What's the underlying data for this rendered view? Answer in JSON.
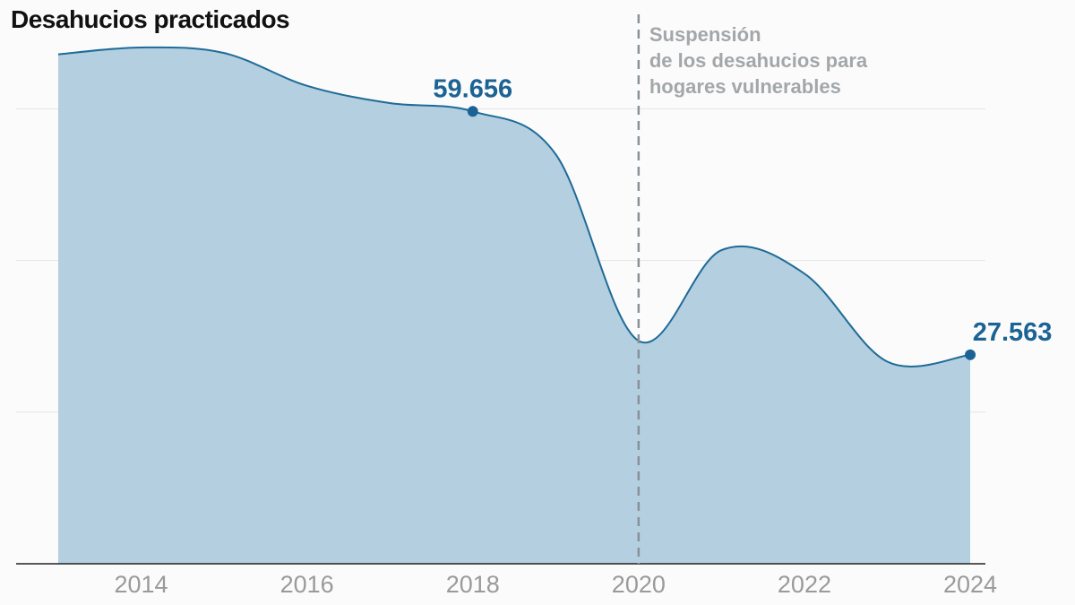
{
  "chart_data": {
    "type": "area",
    "title": "Desahucios practicados",
    "x": [
      2013,
      2014,
      2015,
      2016,
      2017,
      2018,
      2019,
      2020,
      2021,
      2022,
      2023,
      2024
    ],
    "values": [
      67189,
      68091,
      67359,
      63037,
      60754,
      59656,
      54006,
      29406,
      41359,
      38266,
      26659,
      27563
    ],
    "xticks": [
      "2014",
      "2016",
      "2018",
      "2020",
      "2022",
      "2024"
    ],
    "ylim": [
      0,
      74000
    ],
    "gridlines": [
      20000,
      40000,
      60000
    ],
    "highlighted": [
      {
        "x": 2018,
        "label": "59.656"
      },
      {
        "x": 2024,
        "label": "27.563"
      }
    ],
    "annotation": {
      "x": 2020,
      "lines": [
        "Suspensión",
        "de los desahucios para",
        "hogares vulnerables"
      ]
    },
    "colors": {
      "line": "#1f6b98",
      "fill": "#b3cfe0",
      "label": "#1b6394",
      "annotation": "#a3a7a9"
    }
  }
}
